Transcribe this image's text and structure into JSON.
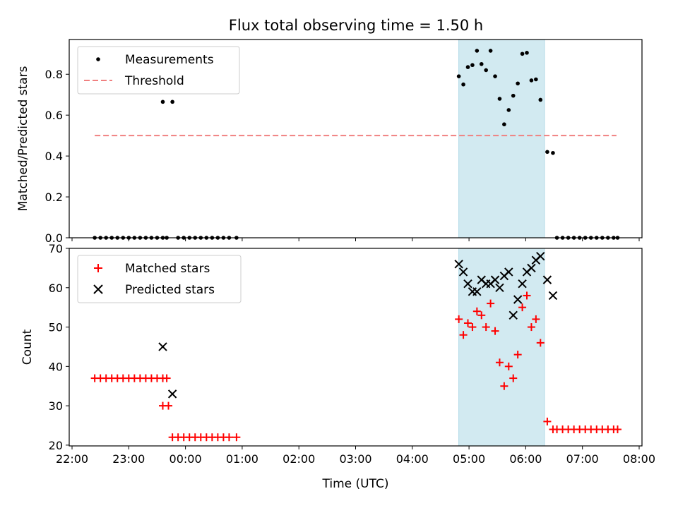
{
  "chart_data": {
    "type": "scatter",
    "title": "Flux total observing time = 1.50 h",
    "xlabel": "Time (UTC)",
    "x_tick_labels": [
      "22:00",
      "23:00",
      "00:00",
      "01:00",
      "02:00",
      "03:00",
      "04:00",
      "05:00",
      "06:00",
      "07:00",
      "08:00"
    ],
    "x_range_hours": [
      -2.05,
      8.05
    ],
    "shaded_interval_hours": [
      4.82,
      6.33
    ],
    "shade_color": "#add8e6",
    "top_panel": {
      "ylabel": "Matched/Predicted stars",
      "ylim": [
        0,
        0.97
      ],
      "yticks": [
        0.0,
        0.2,
        0.4,
        0.6,
        0.8
      ],
      "y_tick_labels": [
        "0.0",
        "0.2",
        "0.4",
        "0.6",
        "0.8"
      ],
      "legend": [
        "Measurements",
        "Threshold"
      ],
      "threshold": {
        "name": "Threshold",
        "y": 0.5,
        "x_from": -1.6,
        "x_to": 7.6,
        "color": "#f08080"
      },
      "measurements": {
        "name": "Measurements",
        "color": "#000000",
        "points": [
          [
            -1.6,
            0
          ],
          [
            -1.5,
            0
          ],
          [
            -1.4,
            0
          ],
          [
            -1.3,
            0
          ],
          [
            -1.2,
            0
          ],
          [
            -1.1,
            0
          ],
          [
            -1.0,
            0
          ],
          [
            -0.9,
            0
          ],
          [
            -0.8,
            0
          ],
          [
            -0.7,
            0
          ],
          [
            -0.6,
            0
          ],
          [
            -0.5,
            0
          ],
          [
            -0.4,
            0
          ],
          [
            -0.33,
            0
          ],
          [
            -0.4,
            0.665
          ],
          [
            -0.23,
            0.665
          ],
          [
            -0.13,
            0
          ],
          [
            -0.03,
            0
          ],
          [
            0.07,
            0
          ],
          [
            0.17,
            0
          ],
          [
            0.27,
            0
          ],
          [
            0.37,
            0
          ],
          [
            0.47,
            0
          ],
          [
            0.57,
            0
          ],
          [
            0.67,
            0
          ],
          [
            0.77,
            0
          ],
          [
            0.9,
            0
          ],
          [
            4.82,
            0.79
          ],
          [
            4.9,
            0.75
          ],
          [
            4.98,
            0.835
          ],
          [
            5.06,
            0.845
          ],
          [
            5.14,
            0.915
          ],
          [
            5.22,
            0.85
          ],
          [
            5.3,
            0.82
          ],
          [
            5.38,
            0.915
          ],
          [
            5.46,
            0.79
          ],
          [
            5.54,
            0.68
          ],
          [
            5.62,
            0.555
          ],
          [
            5.7,
            0.625
          ],
          [
            5.78,
            0.695
          ],
          [
            5.86,
            0.755
          ],
          [
            5.94,
            0.9
          ],
          [
            6.02,
            0.905
          ],
          [
            6.1,
            0.77
          ],
          [
            6.18,
            0.775
          ],
          [
            6.26,
            0.675
          ],
          [
            6.38,
            0.42
          ],
          [
            6.48,
            0.415
          ],
          [
            6.55,
            0
          ],
          [
            6.65,
            0
          ],
          [
            6.75,
            0
          ],
          [
            6.85,
            0
          ],
          [
            6.95,
            0
          ],
          [
            7.05,
            0
          ],
          [
            7.15,
            0
          ],
          [
            7.25,
            0
          ],
          [
            7.35,
            0
          ],
          [
            7.45,
            0
          ],
          [
            7.55,
            0
          ],
          [
            7.62,
            0
          ]
        ]
      }
    },
    "bottom_panel": {
      "ylabel": "Count",
      "ylim": [
        19.8,
        70
      ],
      "yticks": [
        20,
        30,
        40,
        50,
        60,
        70
      ],
      "y_tick_labels": [
        "20",
        "30",
        "40",
        "50",
        "60",
        "70"
      ],
      "legend": [
        "Matched stars",
        "Predicted stars"
      ],
      "matched": {
        "name": "Matched stars",
        "color": "#ff0000",
        "points": [
          [
            -1.6,
            37
          ],
          [
            -1.5,
            37
          ],
          [
            -1.4,
            37
          ],
          [
            -1.3,
            37
          ],
          [
            -1.2,
            37
          ],
          [
            -1.1,
            37
          ],
          [
            -1.0,
            37
          ],
          [
            -0.9,
            37
          ],
          [
            -0.8,
            37
          ],
          [
            -0.7,
            37
          ],
          [
            -0.6,
            37
          ],
          [
            -0.5,
            37
          ],
          [
            -0.4,
            37
          ],
          [
            -0.33,
            37
          ],
          [
            -0.4,
            30
          ],
          [
            -0.3,
            30
          ],
          [
            -0.23,
            22
          ],
          [
            -0.13,
            22
          ],
          [
            -0.03,
            22
          ],
          [
            0.07,
            22
          ],
          [
            0.17,
            22
          ],
          [
            0.27,
            22
          ],
          [
            0.37,
            22
          ],
          [
            0.47,
            22
          ],
          [
            0.57,
            22
          ],
          [
            0.67,
            22
          ],
          [
            0.77,
            22
          ],
          [
            0.9,
            22
          ],
          [
            4.82,
            52
          ],
          [
            4.9,
            48
          ],
          [
            4.98,
            51
          ],
          [
            5.06,
            50
          ],
          [
            5.14,
            54
          ],
          [
            5.22,
            53
          ],
          [
            5.3,
            50
          ],
          [
            5.38,
            56
          ],
          [
            5.46,
            49
          ],
          [
            5.54,
            41
          ],
          [
            5.62,
            35
          ],
          [
            5.7,
            40
          ],
          [
            5.78,
            37
          ],
          [
            5.86,
            43
          ],
          [
            5.94,
            55
          ],
          [
            6.02,
            58
          ],
          [
            6.1,
            50
          ],
          [
            6.18,
            52
          ],
          [
            6.26,
            46
          ],
          [
            6.38,
            26
          ],
          [
            6.48,
            24
          ],
          [
            6.55,
            24
          ],
          [
            6.65,
            24
          ],
          [
            6.75,
            24
          ],
          [
            6.85,
            24
          ],
          [
            6.95,
            24
          ],
          [
            7.05,
            24
          ],
          [
            7.15,
            24
          ],
          [
            7.25,
            24
          ],
          [
            7.35,
            24
          ],
          [
            7.45,
            24
          ],
          [
            7.55,
            24
          ],
          [
            7.62,
            24
          ]
        ]
      },
      "predicted": {
        "name": "Predicted stars",
        "color": "#000000",
        "points": [
          [
            -0.4,
            45
          ],
          [
            -0.23,
            33
          ],
          [
            4.82,
            66
          ],
          [
            4.9,
            64
          ],
          [
            4.98,
            61
          ],
          [
            5.06,
            59
          ],
          [
            5.14,
            59
          ],
          [
            5.22,
            62
          ],
          [
            5.3,
            61
          ],
          [
            5.38,
            61
          ],
          [
            5.46,
            62
          ],
          [
            5.54,
            60
          ],
          [
            5.62,
            63
          ],
          [
            5.7,
            64
          ],
          [
            5.78,
            53
          ],
          [
            5.86,
            57
          ],
          [
            5.94,
            61
          ],
          [
            6.02,
            64
          ],
          [
            6.1,
            65
          ],
          [
            6.18,
            67
          ],
          [
            6.26,
            68
          ],
          [
            6.38,
            62
          ],
          [
            6.48,
            58
          ]
        ]
      }
    }
  }
}
